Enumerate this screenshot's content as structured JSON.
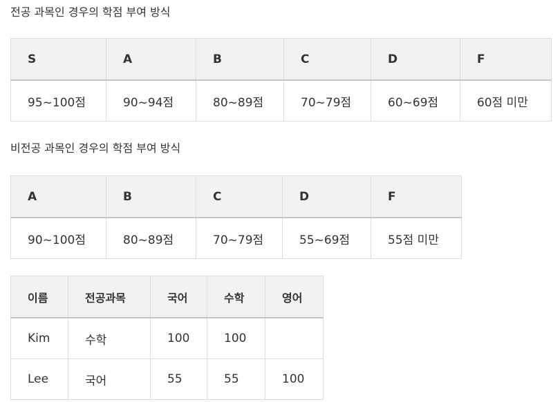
{
  "major": {
    "caption": "전공 과목인 경우의 학점 부여 방식",
    "headers": [
      "S",
      "A",
      "B",
      "C",
      "D",
      "F"
    ],
    "ranges": [
      "95~100점",
      "90~94점",
      "80~89점",
      "70~79점",
      "60~69점",
      "60점 미만"
    ]
  },
  "nonmajor": {
    "caption": "비전공 과목인 경우의 학점 부여 방식",
    "headers": [
      "A",
      "B",
      "C",
      "D",
      "F"
    ],
    "ranges": [
      "90~100점",
      "80~89점",
      "70~79점",
      "55~69점",
      "55점 미만"
    ]
  },
  "scores": {
    "headers": [
      "이름",
      "전공과목",
      "국어",
      "수학",
      "영어"
    ],
    "rows": [
      [
        "Kim",
        "수학",
        "100",
        "100",
        ""
      ],
      [
        "Lee",
        "국어",
        "55",
        "55",
        "100"
      ]
    ]
  }
}
